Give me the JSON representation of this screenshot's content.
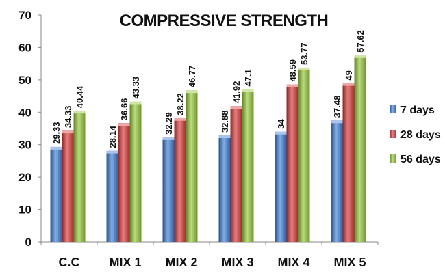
{
  "chart_data": {
    "type": "bar",
    "title": "COMPRESSIVE STRENGTH",
    "xlabel": "",
    "ylabel": "",
    "ylim": [
      0,
      70
    ],
    "yticks": [
      0,
      10,
      20,
      30,
      40,
      50,
      60,
      70
    ],
    "grid": false,
    "legend_position": "right",
    "categories": [
      "C.C",
      "MIX 1",
      "MIX 2",
      "MIX 3",
      "MIX 4",
      "MIX 5"
    ],
    "series": [
      {
        "name": "7 days",
        "color": "#3f7fd6",
        "values": [
          29.33,
          28.14,
          32.29,
          32.88,
          34,
          37.48
        ]
      },
      {
        "name": "28 days",
        "color": "#d93a3a",
        "values": [
          34.33,
          36.66,
          38.22,
          41.92,
          48.59,
          49
        ]
      },
      {
        "name": "56 days",
        "color": "#96c83c",
        "values": [
          40.44,
          43.33,
          46.77,
          47.1,
          53.77,
          57.62
        ]
      }
    ]
  }
}
